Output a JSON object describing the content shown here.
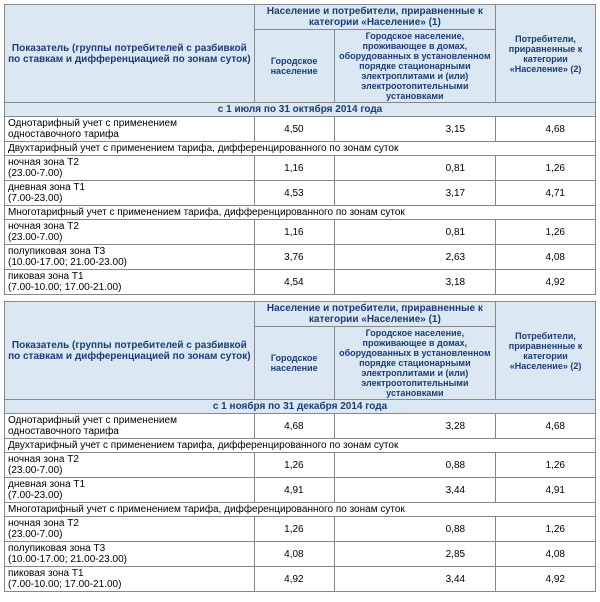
{
  "headers": {
    "indicator": "Показатель (группы потребителей с разбивкой по ставкам и дифференциацией по зонам суток)",
    "groupA": "Население и потребители, приравненные к категории «Население» (1)",
    "urban": "Городское население",
    "urbanDesc": "Городское население, проживающее в домах, оборудованных в установленном порядке стационарными электроплитами и (или) электроотопительными установками",
    "groupB": "Потребители, приравненные к категории «Население» (2)"
  },
  "tables": [
    {
      "period": "с 1 июля по 31 октября 2014 года",
      "rows": [
        {
          "t": "sec",
          "label": "Однотарифный учет с применением одноставочного тарифа",
          "v": [
            "4,50",
            "3,15",
            "4,68"
          ]
        },
        {
          "t": "sec",
          "label": "Двухтарифный учет с применением тарифа, дифференцированного по зонам суток"
        },
        {
          "t": "sub",
          "label": "ночная зона Т2<br>(23.00-7.00)",
          "v": [
            "1,16",
            "0,81",
            "1,26"
          ]
        },
        {
          "t": "sub",
          "label": "дневная зона Т1<br>(7.00-23.00)",
          "v": [
            "4,53",
            "3,17",
            "4,71"
          ]
        },
        {
          "t": "sec",
          "label": "Многотарифный учет с применением тарифа, дифференцированного по зонам суток"
        },
        {
          "t": "sub",
          "label": "ночная зона Т2<br>(23.00-7.00)",
          "v": [
            "1,16",
            "0,81",
            "1,26"
          ]
        },
        {
          "t": "sub",
          "label": "полупиковая зона Т3<br>(10.00-17.00; 21.00-23.00)",
          "v": [
            "3,76",
            "2,63",
            "4,08"
          ]
        },
        {
          "t": "sub",
          "label": "пиковая зона Т1<br>(7.00-10.00; 17.00-21.00)",
          "v": [
            "4,54",
            "3,18",
            "4,92"
          ]
        }
      ]
    },
    {
      "period": "с 1 ноября по 31 декабря 2014 года",
      "rows": [
        {
          "t": "sec",
          "label": "Однотарифный учет с применением одноставочного тарифа",
          "v": [
            "4,68",
            "3,28",
            "4,68"
          ]
        },
        {
          "t": "sec",
          "label": "Двухтарифный учет с применением тарифа, дифференцированного по зонам суток"
        },
        {
          "t": "sub",
          "label": "ночная зона Т2<br>(23.00-7.00)",
          "v": [
            "1,26",
            "0,88",
            "1,26"
          ]
        },
        {
          "t": "sub",
          "label": "дневная зона Т1<br>(7.00-23.00)",
          "v": [
            "4,91",
            "3,44",
            "4,91"
          ]
        },
        {
          "t": "sec",
          "label": "Многотарифный учет с применением тарифа, дифференцированного по зонам суток"
        },
        {
          "t": "sub",
          "label": "ночная зона Т2<br>(23.00-7.00)",
          "v": [
            "1,26",
            "0,88",
            "1,26"
          ]
        },
        {
          "t": "sub",
          "label": "полупиковая зона Т3<br>(10.00-17.00; 21.00-23.00)",
          "v": [
            "4,08",
            "2,85",
            "4,08"
          ]
        },
        {
          "t": "sub",
          "label": "пиковая зона Т1<br>(7.00-10.00; 17.00-21.00)",
          "v": [
            "4,92",
            "3,44",
            "4,92"
          ]
        }
      ]
    }
  ]
}
